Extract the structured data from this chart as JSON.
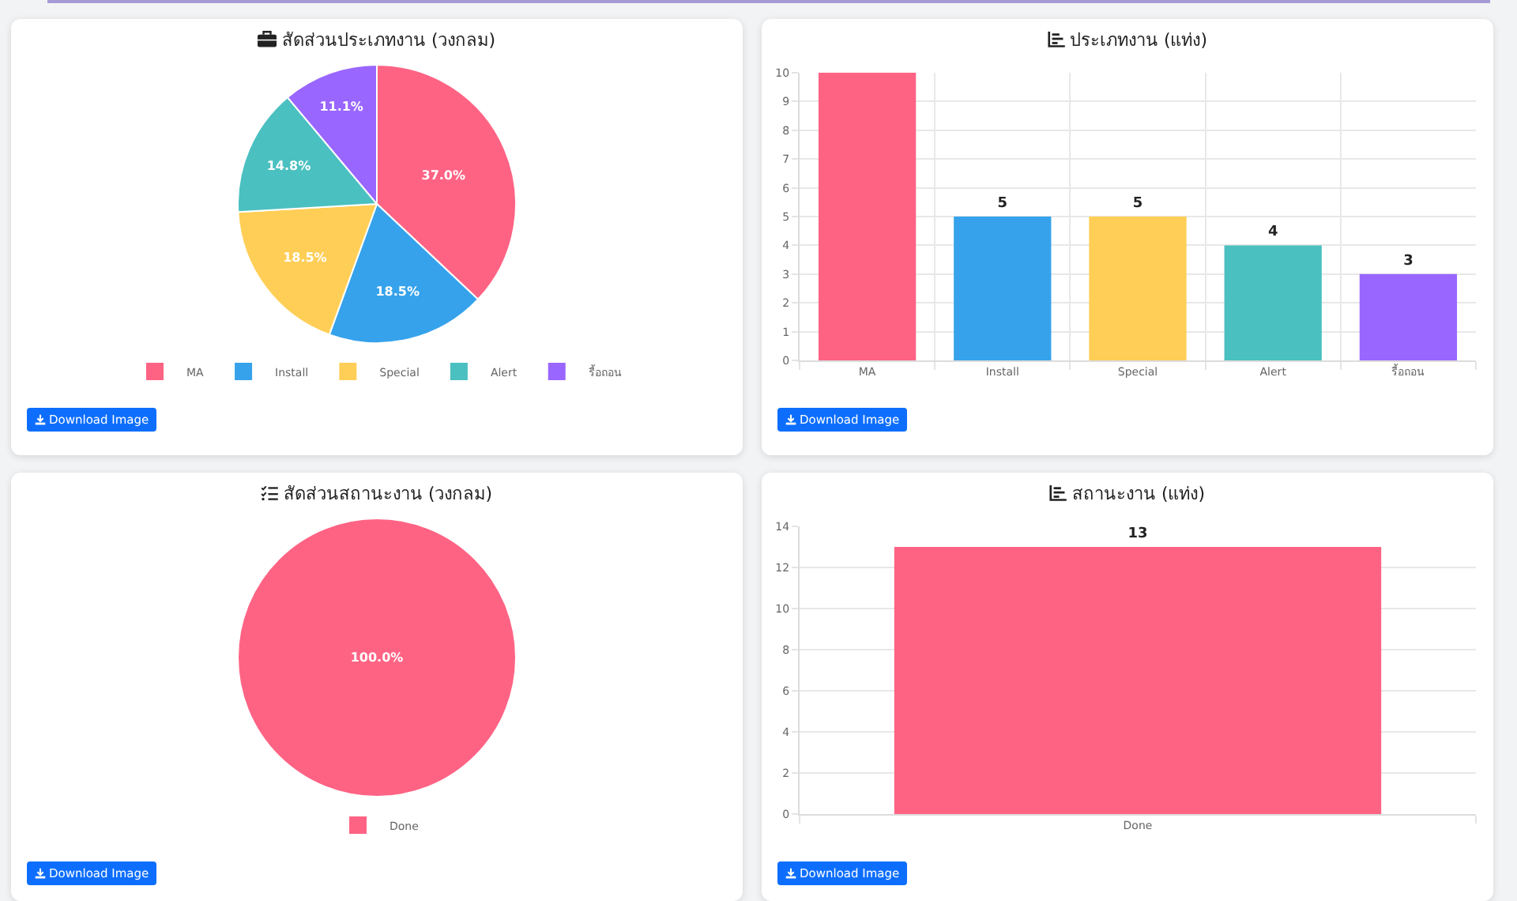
{
  "chart_data": [
    {
      "type": "pie",
      "title": "สัดส่วนประเภทงาน (วงกลม)",
      "categories": [
        "MA",
        "Install",
        "Special",
        "Alert",
        "รื้อถอน"
      ],
      "values": [
        37.0,
        18.5,
        18.5,
        14.8,
        11.1
      ],
      "colors": [
        "#ff6384",
        "#36a2eb",
        "#ffce56",
        "#4bc0c0",
        "#9966ff"
      ],
      "value_labels": [
        "37.0%",
        "18.5%",
        "18.5%",
        "14.8%",
        "11.1%"
      ],
      "legend": "bottom",
      "annotations": [
        "Download Image"
      ]
    },
    {
      "type": "bar",
      "title": "ประเภทงาน (แท่ง)",
      "categories": [
        "MA",
        "Install",
        "Special",
        "Alert",
        "รื้อถอน"
      ],
      "values": [
        10,
        5,
        5,
        4,
        3
      ],
      "colors": [
        "#ff6384",
        "#36a2eb",
        "#ffce56",
        "#4bc0c0",
        "#9966ff"
      ],
      "ylim": [
        0,
        10
      ],
      "yticks": [
        0,
        1,
        2,
        3,
        4,
        5,
        6,
        7,
        8,
        9,
        10
      ],
      "grid": true,
      "value_labels": [
        null,
        "5",
        "5",
        "4",
        "3"
      ],
      "annotations": [
        "Download Image"
      ]
    },
    {
      "type": "pie",
      "title": "สัดส่วนสถานะงาน (วงกลม)",
      "categories": [
        "Done"
      ],
      "values": [
        100.0
      ],
      "colors": [
        "#ff6384"
      ],
      "value_labels": [
        "100.0%"
      ],
      "legend": "bottom",
      "annotations": [
        "Download Image"
      ]
    },
    {
      "type": "bar",
      "title": "สถานะงาน (แท่ง)",
      "categories": [
        "Done"
      ],
      "values": [
        13
      ],
      "colors": [
        "#ff6384"
      ],
      "ylim": [
        0,
        14
      ],
      "yticks": [
        0,
        2,
        4,
        6,
        8,
        10,
        12,
        14
      ],
      "grid": true,
      "data_labels": true,
      "annotations": [
        "Download Image"
      ]
    }
  ]
}
